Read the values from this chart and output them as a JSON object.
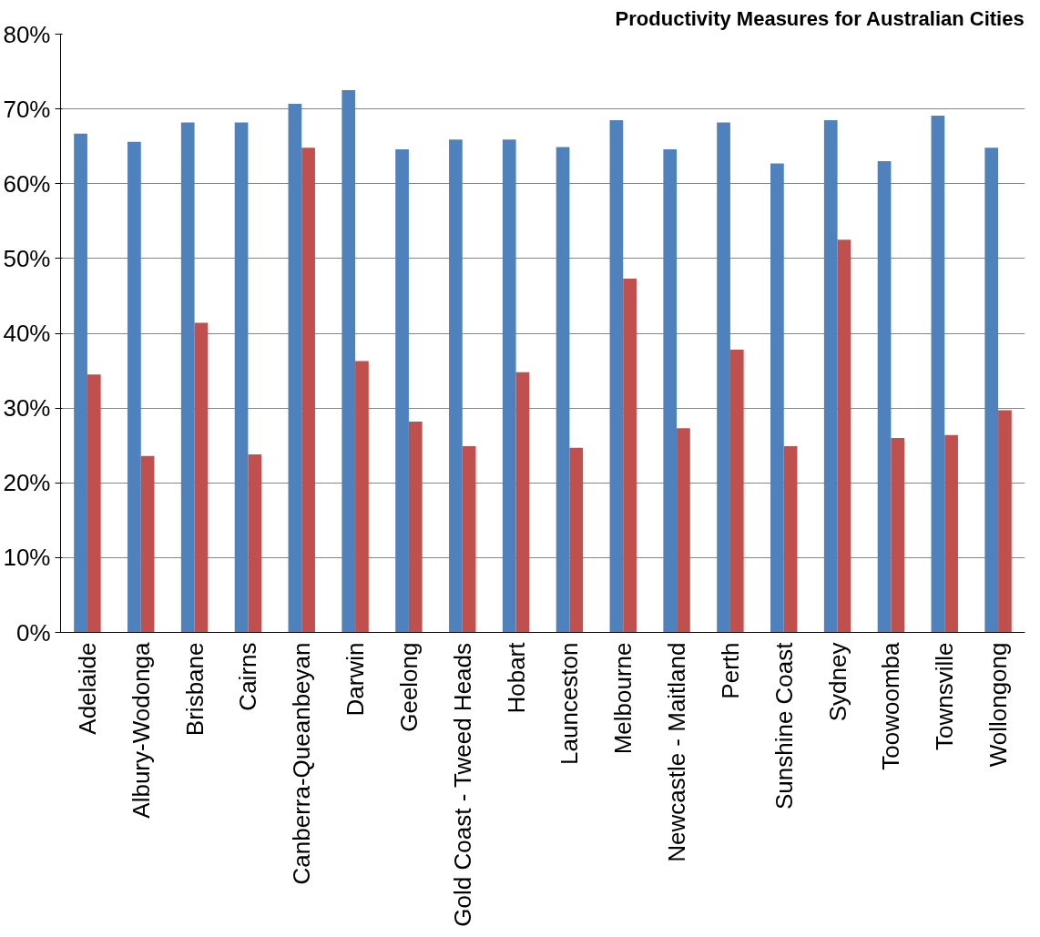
{
  "chart_data": {
    "type": "bar",
    "title": "Productivity Measures for Australian Cities",
    "categories": [
      "Adelaide",
      "Albury-Wodonga",
      "Brisbane",
      "Cairns",
      "Canberra-Queanbeyan",
      "Darwin",
      "Geelong",
      "Gold Coast - Tweed Heads",
      "Hobart",
      "Launceston",
      "Melbourne",
      "Newcastle - Maitland",
      "Perth",
      "Sunshine Coast",
      "Sydney",
      "Toowoomba",
      "Townsville",
      "Wollongong"
    ],
    "series": [
      {
        "color": "#4f81bd",
        "values": [
          66.7,
          65.6,
          68.2,
          68.2,
          70.7,
          72.5,
          64.6,
          65.9,
          65.9,
          64.9,
          68.5,
          64.6,
          68.2,
          62.7,
          68.5,
          63.0,
          69.1,
          64.8
        ]
      },
      {
        "color": "#c0504d",
        "values": [
          34.5,
          23.6,
          41.4,
          23.8,
          64.8,
          36.3,
          28.2,
          24.9,
          34.8,
          24.7,
          47.3,
          27.3,
          37.8,
          24.9,
          52.5,
          26.0,
          26.4,
          29.7
        ]
      }
    ],
    "ylim": [
      0,
      80
    ],
    "yticks": [
      {
        "value": 0,
        "label": "0%"
      },
      {
        "value": 10,
        "label": "10%"
      },
      {
        "value": 20,
        "label": "20%"
      },
      {
        "value": 30,
        "label": "30%"
      },
      {
        "value": 40,
        "label": "40%"
      },
      {
        "value": 50,
        "label": "50%"
      },
      {
        "value": 60,
        "label": "60%"
      },
      {
        "value": 70,
        "label": "70%"
      },
      {
        "value": 80,
        "label": "80%"
      }
    ],
    "grid": "y"
  }
}
